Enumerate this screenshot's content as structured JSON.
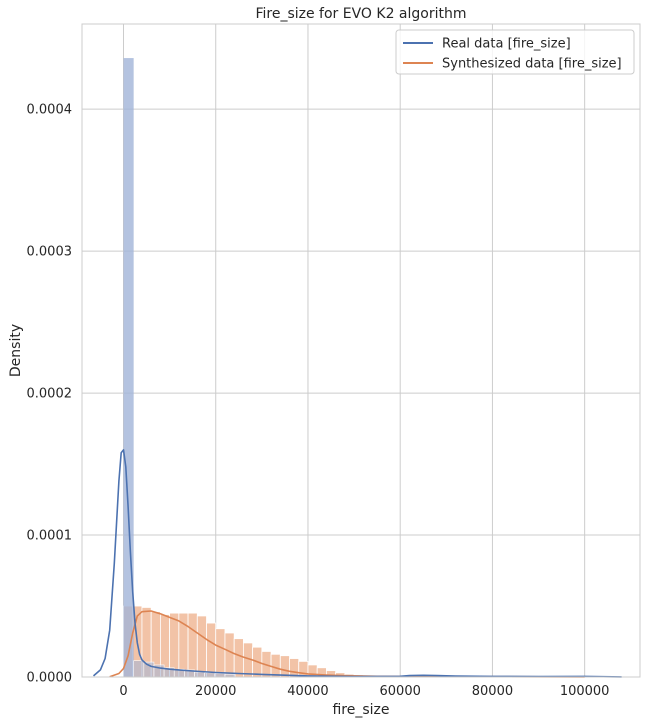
{
  "chart_data": {
    "type": "histogram",
    "title": "Fire_size for EVO K2 algorithm",
    "xlabel": "fire_size",
    "ylabel": "Density",
    "xlim": [
      -9000,
      112000
    ],
    "ylim": [
      0,
      0.00046
    ],
    "xticks": [
      0,
      20000,
      40000,
      60000,
      80000,
      100000
    ],
    "xtick_labels": [
      "0",
      "20000",
      "40000",
      "60000",
      "80000",
      "100000"
    ],
    "yticks": [
      0,
      0.0001,
      0.0002,
      0.0003,
      0.0004
    ],
    "ytick_labels": [
      "0.0000",
      "0.0001",
      "0.0002",
      "0.0003",
      "0.0004"
    ],
    "grid": true,
    "legend_position": "top-right",
    "colors": {
      "real": "#4c72b0",
      "synth": "#dd8452",
      "real_bar": "#a1b4d8",
      "synth_bar": "#f0b898",
      "grid": "#cccccc",
      "axes_bg": "#ffffff"
    },
    "series": [
      {
        "name": "Real data [fire_size]",
        "key": "real",
        "hist_edges": [
          0,
          2200
        ],
        "hist_values": [
          0.000436
        ],
        "small_bins_start": 2200,
        "small_bins_width": 2200,
        "small_bins_values": [
          1.15e-05,
          1.05e-05,
          8.5e-06,
          6.5e-06,
          5.5e-06,
          5e-06,
          3.5e-06,
          3e-06,
          2.5e-06,
          2e-06
        ],
        "kde_x": [
          -6500,
          -5000,
          -4000,
          -3000,
          -2000,
          -1000,
          -500,
          0,
          500,
          1000,
          1500,
          2000,
          2500,
          3000,
          3500,
          4000,
          5000,
          6000,
          8000,
          10000,
          12000,
          15000,
          20000,
          25000,
          30000,
          40000,
          50000,
          60000,
          62000,
          65000,
          68000,
          72000,
          80000,
          90000,
          100000,
          108000
        ],
        "kde_y": [
          8e-07,
          5e-06,
          1.3e-05,
          3.3e-05,
          8e-05,
          0.000138,
          0.000158,
          0.00016,
          0.000148,
          0.00012,
          8.8e-05,
          6e-05,
          3.8e-05,
          2.4e-05,
          1.6e-05,
          1.2e-05,
          9e-06,
          7.5e-06,
          6.3e-06,
          5.5e-06,
          5e-06,
          4.2e-06,
          3.2e-06,
          2.5e-06,
          1.8e-06,
          8e-07,
          3e-07,
          5e-07,
          1e-06,
          1.2e-06,
          1e-06,
          6e-07,
          4e-07,
          3e-07,
          4e-07,
          1e-07
        ]
      },
      {
        "name": "Synthesized data [fire_size]",
        "key": "synth",
        "hist_start": 0,
        "hist_width": 2000,
        "hist_values": [
          5e-05,
          5e-05,
          4.9e-05,
          4.6e-05,
          4.4e-05,
          4.5e-05,
          4.5e-05,
          4.5e-05,
          4.3e-05,
          3.8e-05,
          3.4e-05,
          3.1e-05,
          2.7e-05,
          2.4e-05,
          2.1e-05,
          1.8e-05,
          1.6e-05,
          1.5e-05,
          1.3e-05,
          1.1e-05,
          8.5e-06,
          6.5e-06,
          4.5e-06,
          3e-06,
          2e-06,
          1.5e-06,
          1.2e-06,
          8e-07,
          6e-07,
          5e-07
        ],
        "kde_x": [
          -3000,
          -1000,
          0,
          1000,
          2000,
          3000,
          4000,
          6000,
          8000,
          10000,
          12000,
          14000,
          16000,
          18000,
          20000,
          22000,
          24000,
          26000,
          28000,
          30000,
          32000,
          34000,
          36000,
          38000,
          40000,
          44000,
          48000,
          55000,
          65000,
          80000,
          100000
        ],
        "kde_y": [
          2e-07,
          2.5e-06,
          6e-06,
          1.5e-05,
          3.1e-05,
          4.3e-05,
          4.6e-05,
          4.65e-05,
          4.45e-05,
          4.2e-05,
          3.95e-05,
          3.55e-05,
          3.1e-05,
          2.65e-05,
          2.25e-05,
          1.95e-05,
          1.65e-05,
          1.4e-05,
          1.2e-05,
          9.5e-06,
          7.5e-06,
          5.5e-06,
          4e-06,
          3e-06,
          2.2e-06,
          1.4e-06,
          9e-07,
          5e-07,
          3e-07,
          2e-07,
          1e-07
        ]
      }
    ]
  }
}
